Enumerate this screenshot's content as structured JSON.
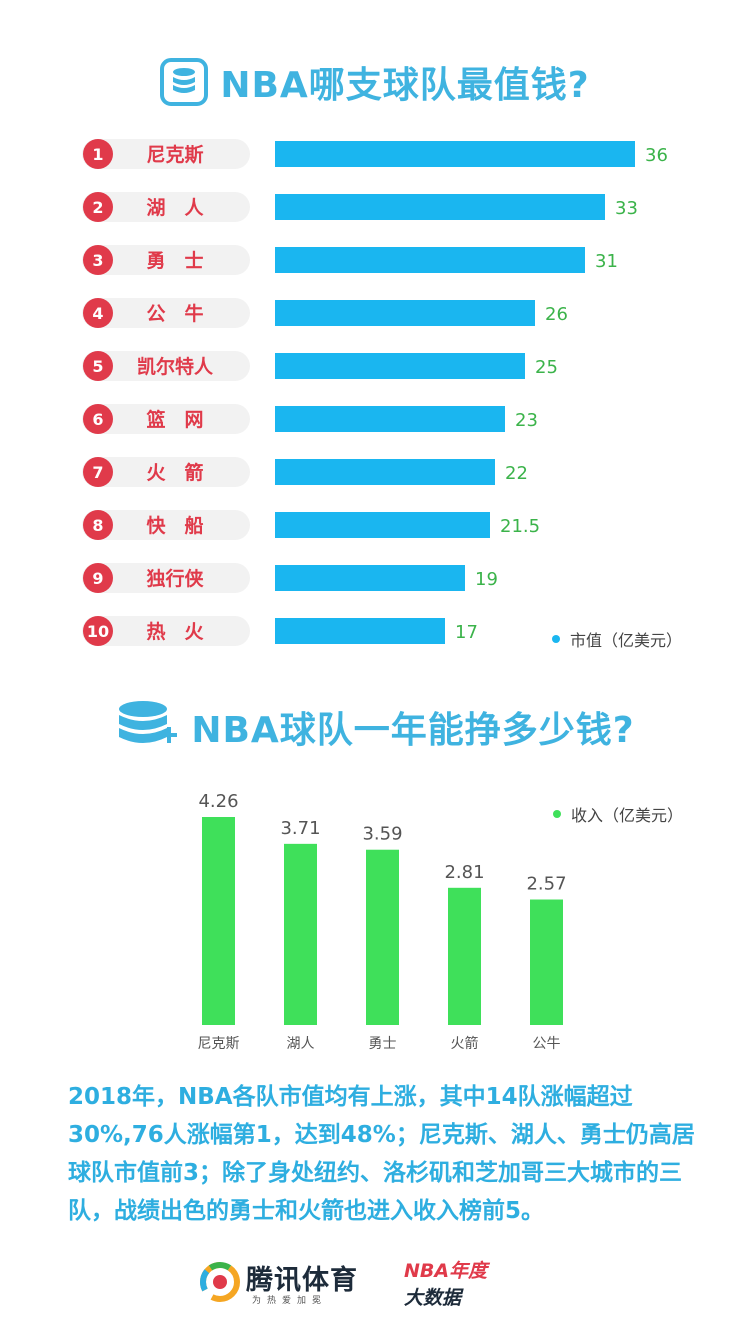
{
  "title1": "NBA哪支球队最值钱?",
  "title2": "NBA球队一年能挣多少钱?",
  "chart_data": [
    {
      "type": "bar",
      "orientation": "horizontal",
      "ranks": [
        "1",
        "2",
        "3",
        "4",
        "5",
        "6",
        "7",
        "8",
        "9",
        "10"
      ],
      "categories": [
        "尼克斯",
        "湖　人",
        "勇　士",
        "公　牛",
        "凯尔特人",
        "篮　网",
        "火　箭",
        "快　船",
        "独行侠",
        "热　火"
      ],
      "values": [
        36,
        33,
        31,
        26,
        25,
        23,
        22,
        21.5,
        19,
        17
      ],
      "value_labels": [
        "36",
        "33",
        "31",
        "26",
        "25",
        "23",
        "22",
        "21.5",
        "19",
        "17"
      ],
      "series": [
        {
          "name": "市值（亿美元）"
        }
      ],
      "legend": "bottom-right",
      "color": "#1ab6f0"
    },
    {
      "type": "bar",
      "orientation": "vertical",
      "categories": [
        "尼克斯",
        "湖人",
        "勇士",
        "火箭",
        "公牛"
      ],
      "values": [
        4.26,
        3.71,
        3.59,
        2.81,
        2.57
      ],
      "value_labels": [
        "4.26",
        "3.71",
        "3.59",
        "2.81",
        "2.57"
      ],
      "series": [
        {
          "name": "收入（亿美元）"
        }
      ],
      "legend": "top-right",
      "color": "#3fe05a"
    }
  ],
  "summary": "2018年，NBA各队市值均有上涨，其中14队涨幅超过30%,76人涨幅第1，达到48%；尼克斯、湖人、勇士仍高居球队市值前3；除了身处纽约、洛杉矶和芝加哥三大城市的三队，战绩出色的勇士和火箭也进入收入榜前5。",
  "footer": {
    "brand_name": "腾讯体育",
    "brand_slogan": "为热爱加冕",
    "badge_line1": "NBA年度",
    "badge_line2": "大数据"
  },
  "colors": {
    "title": "#3fb3e0",
    "rank_red": "#e03a4a",
    "pill_bg": "#f2f2f2",
    "value_text": "#3bb34a"
  }
}
